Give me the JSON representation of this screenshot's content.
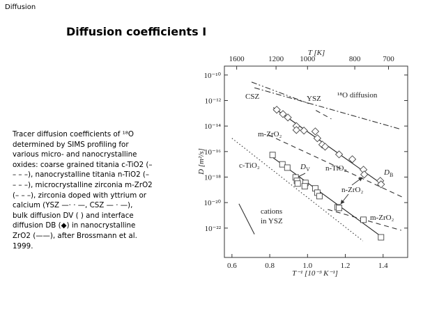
{
  "header": {
    "label": "Diffusion",
    "title": "Diffusion coefficients I"
  },
  "caption": {
    "lines": [
      "Tracer diffusion coefficients of ¹⁸O",
      "determined by SIMS profiling for",
      "various micro- and nanocrystalline",
      "oxides: coarse grained titania c-TiO2 (–",
      "– – –), nanocrystalline titania n-TiO2 (–",
      "– – –), microcrystalline zirconia m-ZrO2",
      "(– – –), zirconia doped with yttrium or",
      "calcium (YSZ —· · —, CSZ — · —),",
      "bulk diffusion DV ( ) and interface",
      "diffusion DB (◆) in nanocrystalline",
      "ZrO2 (——), after Brossmann et al.",
      "1999."
    ]
  },
  "chart_data": {
    "type": "scatter",
    "log_y": true,
    "xlabel": "T⁻¹ [10⁻³ K⁻¹]",
    "ylabel": "D [m²/s]",
    "x2label": "T [K]",
    "xlim": [
      0.56,
      1.53
    ],
    "ylim": [
      5e-25,
      5e-10
    ],
    "xticks": [
      0.6,
      0.8,
      {
        "value": 1,
        "label": "1.0"
      },
      1.2,
      1.4
    ],
    "x2ticks": [
      1600,
      1200,
      1000,
      800,
      700
    ],
    "yticks": [
      {
        "value": 1e-10,
        "label": "10⁻¹⁰"
      },
      {
        "value": 1e-12,
        "label": "10⁻¹²"
      },
      {
        "value": 1e-14,
        "label": "10⁻¹⁴"
      },
      {
        "value": 1e-16,
        "label": "10⁻¹⁶"
      },
      {
        "value": 1e-18,
        "label": "10⁻¹⁸"
      },
      {
        "value": 1e-20,
        "label": "10⁻²⁰"
      },
      {
        "value": 1e-22,
        "label": "10⁻²²"
      }
    ],
    "series": [
      {
        "marker": "diamond",
        "color": "#444444",
        "x": [
          0.837,
          0.87,
          0.896,
          0.941,
          0.941,
          0.981,
          1.041,
          1.052,
          1.078,
          1.093,
          1.167,
          1.237,
          1.296,
          1.3,
          1.385,
          1.389
        ],
        "values": [
          1.9e-13,
          8.7e-14,
          4.7e-14,
          1e-14,
          4.9e-15,
          4.4e-15,
          3.8e-15,
          1.1e-15,
          3.5e-16,
          2.4e-16,
          6e-17,
          2.5e-17,
          3.8e-18,
          1.6e-18,
          5.1e-19,
          2.7e-19
        ]
      },
      {
        "marker": "square",
        "color": "#444444",
        "x": [
          0.815,
          0.867,
          0.893,
          0.937,
          0.944,
          0.948,
          0.989,
          0.985,
          1.041,
          1.052,
          1.063,
          1.159,
          1.167,
          1.296,
          1.389
        ],
        "values": [
          5.4e-17,
          1e-17,
          5.5e-18,
          9.5e-19,
          5.1e-19,
          3.1e-19,
          3.5e-19,
          1.9e-19,
          1.3e-19,
          6e-20,
          3.2e-20,
          4.3e-21,
          3.8e-21,
          4.5e-22,
          1.9e-23
        ]
      }
    ],
    "lines": [
      {
        "style": "solid",
        "color": "#222222",
        "x": [
          0.819,
          1.4
        ],
        "values": [
          2.8e-13,
          2.4e-19
        ]
      },
      {
        "style": "solid",
        "color": "#222222",
        "x": [
          0.819,
          1.396
        ],
        "values": [
          3.2e-17,
          1.9e-23
        ]
      },
      {
        "style": "dashdotdot",
        "color": "#333333",
        "x": [
          0.704,
          1.007
        ],
        "values": [
          2.8e-11,
          5.8e-13
        ]
      },
      {
        "style": "dashdot",
        "color": "#333333",
        "x": [
          0.719,
          1.496
        ],
        "values": [
          1e-11,
          5.5e-15
        ]
      },
      {
        "style": "dashed",
        "color": "#333333",
        "x": [
          1.044,
          1.126
        ],
        "values": [
          1.7e-13,
          3.6e-14
        ]
      },
      {
        "style": "dashed",
        "color": "#333333",
        "x": [
          0.793,
          1.507
        ],
        "values": [
          2e-15,
          2.5e-20
        ]
      },
      {
        "style": "dashed",
        "color": "#333333",
        "x": [
          1.107,
          1.496
        ],
        "values": [
          2.9e-21,
          6.7e-23
        ]
      },
      {
        "style": "dotted",
        "color": "#333333",
        "x": [
          0.6,
          1.293
        ],
        "values": [
          1.1e-15,
          1e-23
        ]
      },
      {
        "style": "solid",
        "color": "#333333",
        "x": [
          0.637,
          0.719
        ],
        "values": [
          8.1e-21,
          3.3e-23
        ]
      }
    ],
    "annotations": [
      {
        "text": "CSZ"
      },
      {
        "text": "YSZ"
      },
      {
        "text": "¹⁸O diffusion"
      },
      {
        "text": "m-ZrO₂"
      },
      {
        "text": "c-TiO₂"
      },
      {
        "text": "D",
        "sub": "V"
      },
      {
        "text": "n-TiO₂"
      },
      {
        "text": "D",
        "sub": "B"
      },
      {
        "text": "n-ZrO₂"
      },
      {
        "text": "m-ZrO₂"
      },
      {
        "text": "cations"
      },
      {
        "text": "in YSZ"
      }
    ]
  }
}
